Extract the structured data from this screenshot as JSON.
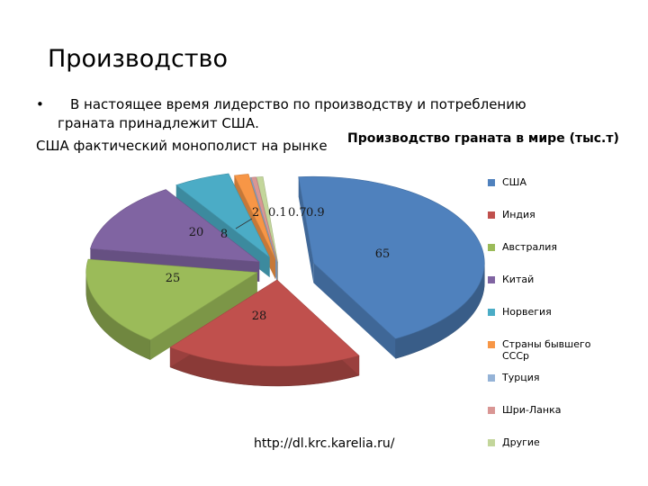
{
  "slide": {
    "title": "Производство",
    "bullet": "В настоящее время лидерство по производству и потреблению граната принадлежит США.",
    "subtitle": "США фактический монополист на рынке",
    "source": "http://dl.krc.karelia.ru/"
  },
  "chart_data": {
    "type": "pie",
    "title": "Производство граната в мире (тыс.т)",
    "legend_position": "right",
    "categories": [
      "США",
      "Индия",
      "Австралия",
      "Китай",
      "Норвегия",
      "Страны бывшего СССр",
      "Турция",
      "Шри-Ланка",
      "Другие"
    ],
    "values": [
      65,
      28,
      25,
      20,
      8,
      2,
      0.1,
      0.7,
      0.9
    ],
    "value_labels": [
      "65",
      "28",
      "25",
      "20",
      "8",
      "2",
      "0.1",
      "0.7",
      "0.9"
    ],
    "colors": [
      "#4F81BD",
      "#C0504D",
      "#9BBB59",
      "#8064A2",
      "#4BACC6",
      "#F79646",
      "#95B3D7",
      "#D99694",
      "#C3D69B"
    ]
  }
}
